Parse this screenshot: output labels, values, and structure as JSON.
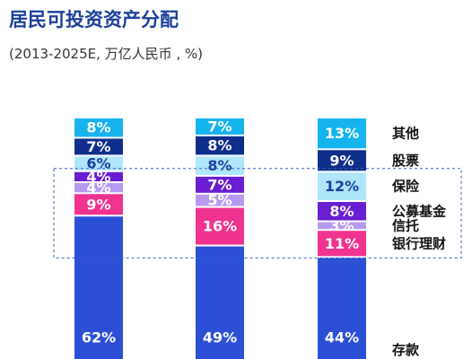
{
  "title": "居民可投资资产分配",
  "subtitle": "(2013-2025E, 万亿人民币 , %)",
  "chart_data": {
    "type": "bar",
    "stacked": true,
    "percent_stacked": true,
    "categories": [
      "",
      "",
      ""
    ],
    "series": [
      {
        "name": "存款",
        "values": [
          62,
          49,
          44
        ],
        "color": "#2b50d6",
        "label_color": "#ffffff"
      },
      {
        "name": "银行理财",
        "values": [
          9,
          16,
          11
        ],
        "color": "#f0338f",
        "label_color": "#ffffff"
      },
      {
        "name": "信托",
        "values": [
          4,
          5,
          3
        ],
        "color": "#b79af0",
        "label_color": "#ffffff"
      },
      {
        "name": "公募基金",
        "values": [
          4,
          7,
          8
        ],
        "color": "#6a1ed1",
        "label_color": "#ffffff"
      },
      {
        "name": "保险",
        "values": [
          6,
          8,
          12
        ],
        "color": "#aee6fb",
        "label_color": "#1a3f9a"
      },
      {
        "name": "股票",
        "values": [
          7,
          8,
          9
        ],
        "color": "#0e2e8c",
        "label_color": "#ffffff"
      },
      {
        "name": "其他",
        "values": [
          8,
          7,
          13
        ],
        "color": "#15b4ef",
        "label_color": "#ffffff"
      }
    ],
    "value_suffix": "%",
    "highlight_box_series": [
      "公募基金",
      "信托",
      "银行理财"
    ],
    "grid": false,
    "legend_position": "right"
  }
}
